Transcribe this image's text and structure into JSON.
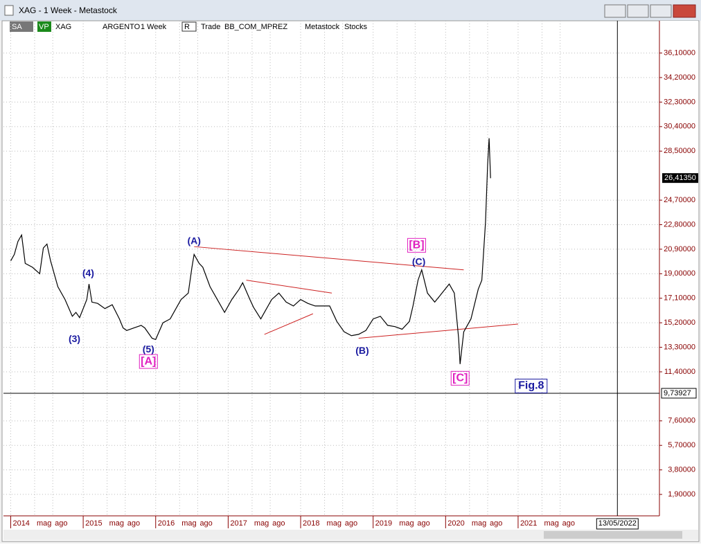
{
  "window": {
    "title": "XAG - 1 Week - Metastock",
    "toolbar": [
      "SA",
      "VP",
      "XAG",
      "ARGENTO",
      "1 Week",
      "R",
      "Trade",
      "BB_COM_MPREZ",
      "Metastock",
      "Stocks"
    ]
  },
  "chart_data": {
    "type": "line",
    "color": "#000000",
    "grid": true,
    "x": [
      2014.0,
      2014.05,
      2014.1,
      2014.15,
      2014.2,
      2014.3,
      2014.4,
      2014.45,
      2014.5,
      2014.55,
      2014.65,
      2014.75,
      2014.85,
      2014.9,
      2014.95,
      2015.05,
      2015.08,
      2015.12,
      2015.2,
      2015.3,
      2015.4,
      2015.5,
      2015.55,
      2015.6,
      2015.7,
      2015.8,
      2015.85,
      2015.95,
      2016.0,
      2016.1,
      2016.2,
      2016.3,
      2016.35,
      2016.45,
      2016.5,
      2016.53,
      2016.6,
      2016.65,
      2016.75,
      2016.85,
      2016.95,
      2017.05,
      2017.15,
      2017.2,
      2017.3,
      2017.35,
      2017.45,
      2017.5,
      2017.6,
      2017.7,
      2017.8,
      2017.9,
      2018.0,
      2018.1,
      2018.2,
      2018.3,
      2018.4,
      2018.5,
      2018.6,
      2018.7,
      2018.8,
      2018.9,
      2019.0,
      2019.1,
      2019.2,
      2019.3,
      2019.4,
      2019.5,
      2019.55,
      2019.62,
      2019.67,
      2019.75,
      2019.85,
      2019.95,
      2020.05,
      2020.12,
      2020.18,
      2020.2,
      2020.25,
      2020.35,
      2020.45,
      2020.5,
      2020.55,
      2020.58,
      2020.6,
      2020.62
    ],
    "values": [
      20.0,
      20.5,
      21.5,
      22.0,
      19.8,
      19.5,
      19.0,
      21.0,
      21.3,
      20.0,
      18.0,
      17.0,
      15.7,
      16.0,
      15.6,
      17.0,
      18.2,
      16.8,
      16.7,
      16.3,
      16.6,
      15.5,
      14.8,
      14.6,
      14.8,
      15.0,
      14.8,
      14.0,
      13.9,
      15.2,
      15.5,
      16.5,
      17.0,
      17.5,
      19.5,
      20.5,
      19.8,
      19.5,
      18.0,
      17.0,
      16.0,
      17.0,
      17.8,
      18.3,
      17.0,
      16.4,
      15.5,
      16.0,
      17.0,
      17.5,
      16.8,
      16.5,
      17.0,
      16.7,
      16.5,
      16.5,
      16.5,
      15.3,
      14.5,
      14.2,
      14.3,
      14.6,
      15.5,
      15.7,
      15.0,
      14.9,
      14.7,
      15.3,
      16.5,
      18.5,
      19.3,
      17.5,
      16.8,
      17.5,
      18.2,
      17.5,
      14.0,
      12.0,
      14.5,
      15.5,
      17.8,
      18.5,
      23.0,
      27.5,
      29.5,
      26.4
    ],
    "xlim": [
      2013.9,
      2022.95
    ],
    "ylim": [
      0.24,
      38.6
    ],
    "yticks": [
      {
        "value": 1.9,
        "label": "1,90000"
      },
      {
        "value": 3.8,
        "label": "3,80000"
      },
      {
        "value": 5.7,
        "label": "5,70000"
      },
      {
        "value": 7.6,
        "label": "7,60000"
      },
      {
        "value": 11.4,
        "label": "11,40000"
      },
      {
        "value": 13.3,
        "label": "13,30000"
      },
      {
        "value": 15.2,
        "label": "15,20000"
      },
      {
        "value": 17.1,
        "label": "17,10000"
      },
      {
        "value": 19.0,
        "label": "19,00000"
      },
      {
        "value": 20.9,
        "label": "20,90000"
      },
      {
        "value": 22.8,
        "label": "22,80000"
      },
      {
        "value": 24.7,
        "label": "24,70000"
      },
      {
        "value": 28.5,
        "label": "28,50000"
      },
      {
        "value": 30.4,
        "label": "30,40000"
      },
      {
        "value": 32.3,
        "label": "32,30000"
      },
      {
        "value": 34.2,
        "label": "34,20000"
      },
      {
        "value": 36.1,
        "label": "36,10000"
      }
    ],
    "xticks": [
      2014,
      {
        "value": 2014.33,
        "label": "mag"
      },
      {
        "value": 2014.58,
        "label": "ago"
      },
      2015,
      {
        "value": 2015.33,
        "label": "mag"
      },
      {
        "value": 2015.58,
        "label": "ago"
      },
      2016,
      {
        "value": 2016.33,
        "label": "mag"
      },
      {
        "value": 2016.58,
        "label": "ago"
      },
      2017,
      {
        "value": 2017.33,
        "label": "mag"
      },
      {
        "value": 2017.58,
        "label": "ago"
      },
      2018,
      {
        "value": 2018.33,
        "label": "mag"
      },
      {
        "value": 2018.58,
        "label": "ago"
      },
      2019,
      {
        "value": 2019.33,
        "label": "mag"
      },
      {
        "value": 2019.58,
        "label": "ago"
      },
      2020,
      {
        "value": 2020.33,
        "label": "mag"
      },
      {
        "value": 2020.58,
        "label": "ago"
      },
      2021,
      {
        "value": 2021.33,
        "label": "mag"
      },
      {
        "value": 2021.58,
        "label": "ago"
      }
    ],
    "last_price": {
      "value": 26.4135,
      "label": "26,41350"
    },
    "crosshair_y": {
      "value": 9.73927,
      "label": "9,73927"
    },
    "crosshair_x": {
      "value": 2022.37,
      "label": "13/05/2022"
    },
    "annotations": [
      {
        "text": "(A)",
        "x": 2016.53,
        "y": 21.5,
        "color": "#1a1aa0"
      },
      {
        "text": "(3)",
        "x": 2014.88,
        "y": 13.9,
        "color": "#1a1aa0"
      },
      {
        "text": "(4)",
        "x": 2015.07,
        "y": 19.0,
        "color": "#1a1aa0"
      },
      {
        "text": "(5)",
        "x": 2015.9,
        "y": 13.1,
        "color": "#1a1aa0"
      },
      {
        "text": "[A]",
        "x": 2015.9,
        "y": 12.2,
        "color": "#e020c0"
      },
      {
        "text": "(B)",
        "x": 2018.85,
        "y": 13.0,
        "color": "#1a1aa0"
      },
      {
        "text": "[B]",
        "x": 2019.6,
        "y": 21.2,
        "color": "#e020c0"
      },
      {
        "text": "(C)",
        "x": 2019.63,
        "y": 19.9,
        "color": "#1a1aa0"
      },
      {
        "text": "[C]",
        "x": 2020.2,
        "y": 10.9,
        "color": "#e020c0"
      },
      {
        "text": "Fig.8",
        "x": 2021.18,
        "y": 10.3,
        "color": "#1a1aa0"
      }
    ],
    "trendlines": [
      {
        "x": [
          2016.53,
          2020.25
        ],
        "y": [
          21.1,
          19.3
        ]
      },
      {
        "x": [
          2018.8,
          2021.0
        ],
        "y": [
          14.0,
          15.1
        ]
      },
      {
        "x": [
          2017.25,
          2018.43
        ],
        "y": [
          18.5,
          17.5
        ]
      },
      {
        "x": [
          2017.5,
          2018.17
        ],
        "y": [
          14.3,
          15.9
        ]
      }
    ],
    "trendline_color": "#cc2020"
  }
}
